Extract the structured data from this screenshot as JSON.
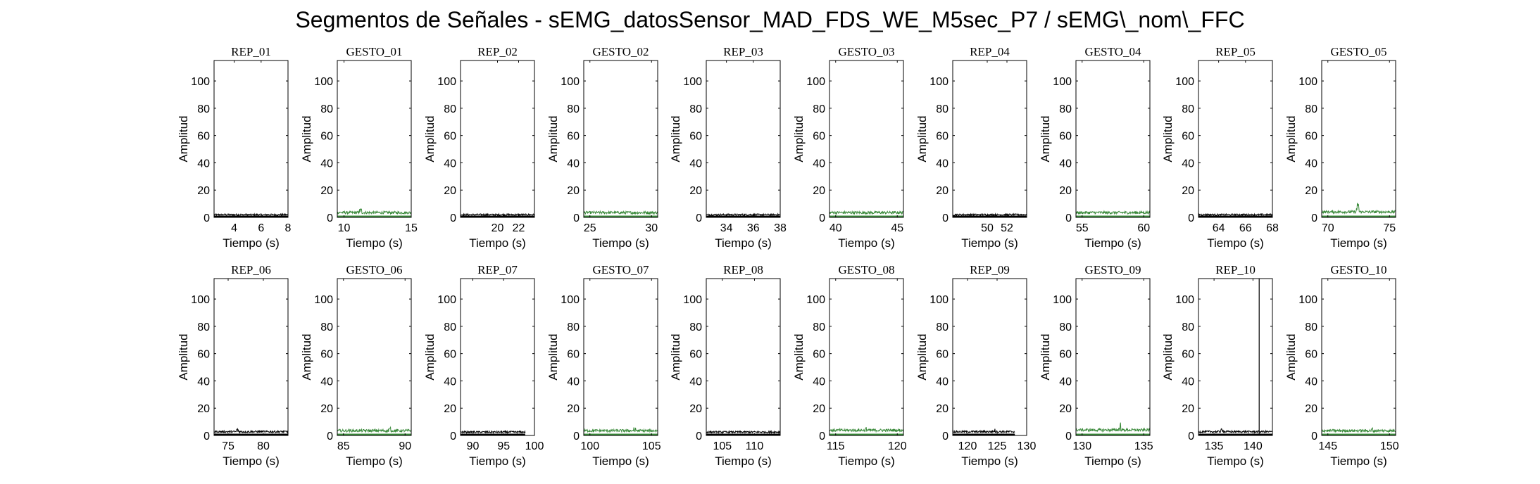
{
  "figure": {
    "title": "Segmentos de Señales - sEMG_datosSensor_MAD_FDS_WE_M5sec_P7 / sEMG\\_nom\\_FFC"
  },
  "colors": {
    "rep": "#000000",
    "gesto": "#3a8a3a",
    "axis": "#000000",
    "background": "#ffffff"
  },
  "chart_data": [
    {
      "type": "line",
      "title": "REP_01",
      "xlabel": "Tiempo (s)",
      "ylabel": "Amplitud",
      "xlim": [
        2.5,
        8
      ],
      "ylim": [
        0,
        115
      ],
      "xticks": [
        4,
        6,
        8
      ],
      "yticks": [
        0,
        20,
        40,
        60,
        80,
        100
      ],
      "color": "#000000",
      "series": [
        {
          "x": [
            2.5,
            8
          ],
          "level": [
            1.4,
            2.6
          ]
        }
      ]
    },
    {
      "type": "line",
      "title": "GESTO_01",
      "xlabel": "Tiempo (s)",
      "ylabel": "Amplitud",
      "xlim": [
        9.5,
        15
      ],
      "ylim": [
        0,
        115
      ],
      "xticks": [
        10,
        15
      ],
      "yticks": [
        0,
        20,
        40,
        60,
        80,
        100
      ],
      "color": "#3a8a3a",
      "series": [
        {
          "x": [
            9.5,
            15
          ],
          "level": [
            2.5,
            4.5
          ],
          "peak": 7
        }
      ]
    },
    {
      "type": "line",
      "title": "REP_02",
      "xlabel": "Tiempo (s)",
      "ylabel": "Amplitud",
      "xlim": [
        16.5,
        23.5
      ],
      "ylim": [
        0,
        115
      ],
      "xticks": [
        20,
        22
      ],
      "yticks": [
        0,
        20,
        40,
        60,
        80,
        100
      ],
      "color": "#000000",
      "series": [
        {
          "x": [
            16.5,
            23.5
          ],
          "level": [
            1.4,
            2.6
          ]
        }
      ]
    },
    {
      "type": "line",
      "title": "GESTO_02",
      "xlabel": "Tiempo (s)",
      "ylabel": "Amplitud",
      "xlim": [
        24.5,
        30.5
      ],
      "ylim": [
        0,
        115
      ],
      "xticks": [
        25,
        30
      ],
      "yticks": [
        0,
        20,
        40,
        60,
        80,
        100
      ],
      "color": "#3a8a3a",
      "series": [
        {
          "x": [
            24.5,
            30.5
          ],
          "level": [
            2.5,
            4.5
          ]
        }
      ]
    },
    {
      "type": "line",
      "title": "REP_03",
      "xlabel": "Tiempo (s)",
      "ylabel": "Amplitud",
      "xlim": [
        32.5,
        38
      ],
      "ylim": [
        0,
        115
      ],
      "xticks": [
        34,
        36,
        38
      ],
      "yticks": [
        0,
        20,
        40,
        60,
        80,
        100
      ],
      "color": "#000000",
      "series": [
        {
          "x": [
            32.5,
            38
          ],
          "level": [
            1.4,
            2.6
          ]
        }
      ]
    },
    {
      "type": "line",
      "title": "GESTO_03",
      "xlabel": "Tiempo (s)",
      "ylabel": "Amplitud",
      "xlim": [
        39.5,
        45.5
      ],
      "ylim": [
        0,
        115
      ],
      "xticks": [
        40,
        45
      ],
      "yticks": [
        0,
        20,
        40,
        60,
        80,
        100
      ],
      "color": "#3a8a3a",
      "series": [
        {
          "x": [
            39.5,
            45.5
          ],
          "level": [
            2.5,
            4.5
          ]
        }
      ]
    },
    {
      "type": "line",
      "title": "REP_04",
      "xlabel": "Tiempo (s)",
      "ylabel": "Amplitud",
      "xlim": [
        46.5,
        54
      ],
      "ylim": [
        0,
        115
      ],
      "xticks": [
        50,
        52
      ],
      "yticks": [
        0,
        20,
        40,
        60,
        80,
        100
      ],
      "color": "#000000",
      "series": [
        {
          "x": [
            46.5,
            54
          ],
          "level": [
            1.4,
            2.6
          ]
        }
      ]
    },
    {
      "type": "line",
      "title": "GESTO_04",
      "xlabel": "Tiempo (s)",
      "ylabel": "Amplitud",
      "xlim": [
        54.5,
        60.5
      ],
      "ylim": [
        0,
        115
      ],
      "xticks": [
        55,
        60
      ],
      "yticks": [
        0,
        20,
        40,
        60,
        80,
        100
      ],
      "color": "#3a8a3a",
      "series": [
        {
          "x": [
            54.5,
            60.5
          ],
          "level": [
            2.5,
            4.5
          ]
        }
      ]
    },
    {
      "type": "line",
      "title": "REP_05",
      "xlabel": "Tiempo (s)",
      "ylabel": "Amplitud",
      "xlim": [
        62.5,
        68
      ],
      "ylim": [
        0,
        115
      ],
      "xticks": [
        64,
        66,
        68
      ],
      "yticks": [
        0,
        20,
        40,
        60,
        80,
        100
      ],
      "color": "#000000",
      "series": [
        {
          "x": [
            62.5,
            68
          ],
          "level": [
            1.4,
            2.6
          ]
        }
      ]
    },
    {
      "type": "line",
      "title": "GESTO_05",
      "xlabel": "Tiempo (s)",
      "ylabel": "Amplitud",
      "xlim": [
        69.5,
        75.5
      ],
      "ylim": [
        0,
        115
      ],
      "xticks": [
        70,
        75
      ],
      "yticks": [
        0,
        20,
        40,
        60,
        80,
        100
      ],
      "color": "#3a8a3a",
      "series": [
        {
          "x": [
            69.5,
            75.5
          ],
          "level": [
            3,
            5
          ],
          "peak": 11
        }
      ]
    },
    {
      "type": "line",
      "title": "REP_06",
      "xlabel": "Tiempo (s)",
      "ylabel": "Amplitud",
      "xlim": [
        73,
        83.5
      ],
      "ylim": [
        0,
        115
      ],
      "xticks": [
        75,
        80
      ],
      "yticks": [
        0,
        20,
        40,
        60,
        80,
        100
      ],
      "color": "#000000",
      "series": [
        {
          "x": [
            73,
            83.5
          ],
          "level": [
            2,
            3.5
          ],
          "peak": 5.5
        }
      ]
    },
    {
      "type": "line",
      "title": "GESTO_06",
      "xlabel": "Tiempo (s)",
      "ylabel": "Amplitud",
      "xlim": [
        84.5,
        90.5
      ],
      "ylim": [
        0,
        115
      ],
      "xticks": [
        85,
        90
      ],
      "yticks": [
        0,
        20,
        40,
        60,
        80,
        100
      ],
      "color": "#3a8a3a",
      "series": [
        {
          "x": [
            84.5,
            90.5
          ],
          "level": [
            2.5,
            4.5
          ],
          "peak": 6
        }
      ]
    },
    {
      "type": "line",
      "title": "REP_07",
      "xlabel": "Tiempo (s)",
      "ylabel": "Amplitud",
      "xlim": [
        88,
        100
      ],
      "ylim": [
        0,
        115
      ],
      "xticks": [
        90,
        95,
        100
      ],
      "yticks": [
        0,
        20,
        40,
        60,
        80,
        100
      ],
      "color": "#000000",
      "series": [
        {
          "x": [
            88,
            98.5
          ],
          "level": [
            1.8,
            3.2
          ]
        }
      ]
    },
    {
      "type": "line",
      "title": "GESTO_07",
      "xlabel": "Tiempo (s)",
      "ylabel": "Amplitud",
      "xlim": [
        99.5,
        105.5
      ],
      "ylim": [
        0,
        115
      ],
      "xticks": [
        100,
        105
      ],
      "yticks": [
        0,
        20,
        40,
        60,
        80,
        100
      ],
      "color": "#3a8a3a",
      "series": [
        {
          "x": [
            99.5,
            105.5
          ],
          "level": [
            2.5,
            4.5
          ],
          "peak": 6
        }
      ]
    },
    {
      "type": "line",
      "title": "REP_08",
      "xlabel": "Tiempo (s)",
      "ylabel": "Amplitud",
      "xlim": [
        102.5,
        114
      ],
      "ylim": [
        0,
        115
      ],
      "xticks": [
        105,
        110
      ],
      "yticks": [
        0,
        20,
        40,
        60,
        80,
        100
      ],
      "color": "#000000",
      "series": [
        {
          "x": [
            102.5,
            114
          ],
          "level": [
            1.8,
            3.2
          ]
        }
      ]
    },
    {
      "type": "line",
      "title": "GESTO_08",
      "xlabel": "Tiempo (s)",
      "ylabel": "Amplitud",
      "xlim": [
        114.5,
        120.5
      ],
      "ylim": [
        0,
        115
      ],
      "xticks": [
        115,
        120
      ],
      "yticks": [
        0,
        20,
        40,
        60,
        80,
        100
      ],
      "color": "#3a8a3a",
      "series": [
        {
          "x": [
            114.5,
            120.5
          ],
          "level": [
            2.8,
            4.8
          ],
          "peak": 6
        }
      ]
    },
    {
      "type": "line",
      "title": "REP_09",
      "xlabel": "Tiempo (s)",
      "ylabel": "Amplitud",
      "xlim": [
        117.5,
        130
      ],
      "ylim": [
        0,
        115
      ],
      "xticks": [
        120,
        125,
        130
      ],
      "yticks": [
        0,
        20,
        40,
        60,
        80,
        100
      ],
      "color": "#000000",
      "series": [
        {
          "x": [
            117.5,
            128
          ],
          "level": [
            2,
            3.5
          ],
          "peak": 5
        }
      ]
    },
    {
      "type": "line",
      "title": "GESTO_09",
      "xlabel": "Tiempo (s)",
      "ylabel": "Amplitud",
      "xlim": [
        129.5,
        135.5
      ],
      "ylim": [
        0,
        115
      ],
      "xticks": [
        130,
        135
      ],
      "yticks": [
        0,
        20,
        40,
        60,
        80,
        100
      ],
      "color": "#3a8a3a",
      "series": [
        {
          "x": [
            129.5,
            135.5
          ],
          "level": [
            3,
            5
          ],
          "peak": 10
        }
      ]
    },
    {
      "type": "line",
      "title": "REP_10",
      "xlabel": "Tiempo (s)",
      "ylabel": "Amplitud",
      "xlim": [
        133,
        142.5
      ],
      "ylim": [
        0,
        115
      ],
      "xticks": [
        135,
        140
      ],
      "yticks": [
        0,
        20,
        40,
        60,
        80,
        100
      ],
      "color": "#000000",
      "series": [
        {
          "x": [
            133,
            142.5
          ],
          "level": [
            2,
            3.5
          ],
          "peak": 5,
          "spike_x": 140.8,
          "spike_y": 115
        }
      ]
    },
    {
      "type": "line",
      "title": "GESTO_10",
      "xlabel": "Tiempo (s)",
      "ylabel": "Amplitud",
      "xlim": [
        144.5,
        150.5
      ],
      "ylim": [
        0,
        115
      ],
      "xticks": [
        145,
        150
      ],
      "yticks": [
        0,
        20,
        40,
        60,
        80,
        100
      ],
      "color": "#3a8a3a",
      "series": [
        {
          "x": [
            144.5,
            150.5
          ],
          "level": [
            2.5,
            4.5
          ],
          "peak": 6
        }
      ]
    }
  ]
}
